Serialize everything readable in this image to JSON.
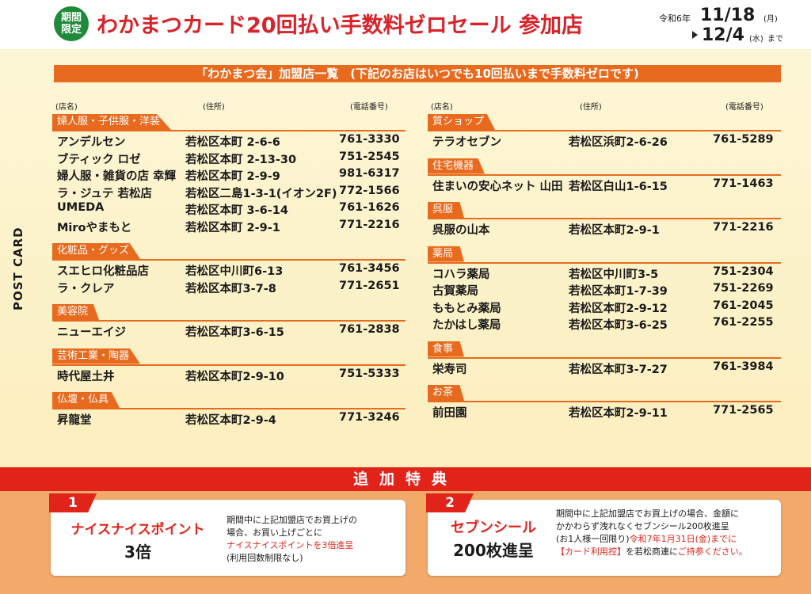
{
  "header": {
    "badge": "期間限定",
    "title": "わかまつカード20回払い手数料ゼロセール 参加店",
    "era": "令和6年",
    "date_from": "11/18",
    "dow_from": "(月)",
    "date_to": "12/4",
    "dow_to": "(水)",
    "until": "まで"
  },
  "side_label": "POST CARD",
  "list_title": "「わかまつ会」加盟店一覧　(下記のお店はいつでも10回払いまで手数料ゼロです)",
  "column_headers": {
    "name": "(店名)",
    "address": "(住所)",
    "tel": "(電話番号)"
  },
  "left_categories": [
    {
      "title": "婦人服・子供服・洋装",
      "shops": [
        {
          "name": "アンデルセン",
          "address": "若松区本町 2-6-6",
          "tel": "761-3330"
        },
        {
          "name": "ブティック ロゼ",
          "address": "若松区本町 2-13-30",
          "tel": "751-2545"
        },
        {
          "name": "婦人服・雑貨の店 幸輝",
          "address": "若松区本町 2-9-9",
          "tel": "981-6317"
        },
        {
          "name": "ラ・ジュテ 若松店",
          "address": "若松区二島1-3-1(イオン2F)",
          "tel": "772-1566"
        },
        {
          "name": "UMEDA",
          "address": "若松区本町 3-6-14",
          "tel": "761-1626"
        },
        {
          "name": "Miroやまもと",
          "address": "若松区本町 2-9-1",
          "tel": "771-2216"
        }
      ]
    },
    {
      "title": "化粧品・グッズ",
      "shops": [
        {
          "name": "スエヒロ化粧品店",
          "address": "若松区中川町6-13",
          "tel": "761-3456"
        },
        {
          "name": "ラ・クレア",
          "address": "若松区本町3-7-8",
          "tel": "771-2651"
        }
      ]
    },
    {
      "title": "美容院",
      "shops": [
        {
          "name": "ニューエイジ",
          "address": "若松区本町3-6-15",
          "tel": "761-2838"
        }
      ]
    },
    {
      "title": "芸術工業・陶器",
      "shops": [
        {
          "name": "時代屋土井",
          "address": "若松区本町2-9-10",
          "tel": "751-5333"
        }
      ]
    },
    {
      "title": "仏壇・仏具",
      "shops": [
        {
          "name": "昇龍堂",
          "address": "若松区本町2-9-4",
          "tel": "771-3246"
        }
      ]
    }
  ],
  "right_categories": [
    {
      "title": "質ショップ",
      "shops": [
        {
          "name": "テラオセブン",
          "address": "若松区浜町2-6-26",
          "tel": "761-5289"
        }
      ]
    },
    {
      "title": "住宅機器",
      "shops": [
        {
          "name": "住まいの安心ネット 山田",
          "address": "若松区白山1-6-15",
          "tel": "771-1463"
        }
      ]
    },
    {
      "title": "呉服",
      "shops": [
        {
          "name": "呉服の山本",
          "address": "若松区本町2-9-1",
          "tel": "771-2216"
        }
      ]
    },
    {
      "title": "薬局",
      "shops": [
        {
          "name": "コハラ薬局",
          "address": "若松区中川町3-5",
          "tel": "751-2304"
        },
        {
          "name": "古賀薬局",
          "address": "若松区本町1-7-39",
          "tel": "751-2269"
        },
        {
          "name": "ももとみ薬局",
          "address": "若松区本町2-9-12",
          "tel": "761-2045"
        },
        {
          "name": "たかはし薬局",
          "address": "若松区本町3-6-25",
          "tel": "761-2255"
        }
      ]
    },
    {
      "title": "食事",
      "shops": [
        {
          "name": "栄寿司",
          "address": "若松区本町3-7-27",
          "tel": "761-3984"
        }
      ]
    },
    {
      "title": "お茶",
      "shops": [
        {
          "name": "前田園",
          "address": "若松区本町2-9-11",
          "tel": "771-2565"
        }
      ]
    }
  ],
  "bonus": {
    "title": "追加特典",
    "card1": {
      "number": "1",
      "title_line1": "ナイスナイスポイント",
      "title_line2": "3倍",
      "body1": "期間中に上記加盟店でお買上げの",
      "body2": "場合、お買い上げごとに",
      "body3_red": "ナイスナイスポイントを3倍進呈",
      "body4": "(利用回数制限なし)"
    },
    "card2": {
      "number": "2",
      "title_line1": "セブンシール",
      "title_line2": "200枚進呈",
      "body1": "期間中に上記加盟店でお買上げの場合、金額に",
      "body2": "かかわらず洩れなくセブンシール200枚進呈",
      "body3a": "(お1人様一回限り)",
      "body3b_red": "令和7年1月31日(金)までに",
      "body4a_red": "【カード利用控】",
      "body4b": "を若松商連に",
      "body4c_red": "ご持参ください。"
    }
  }
}
